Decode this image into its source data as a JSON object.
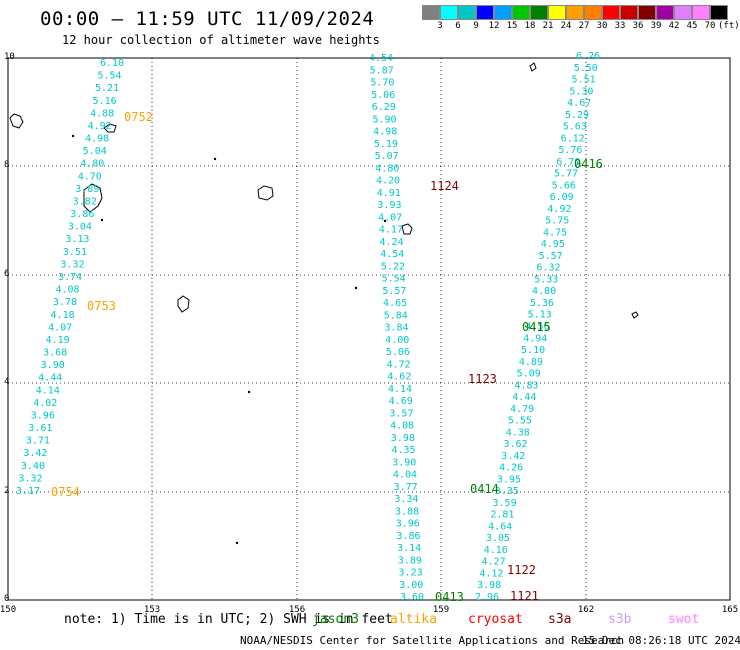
{
  "header": {
    "title": "00:00 – 11:59 UTC 11/09/2024",
    "subtitle": "12 hour collection of altimeter wave heights"
  },
  "legend": {
    "unit_label": "(ft)",
    "colors": [
      "#808080",
      "#00ffff",
      "#00c8c8",
      "#0000ff",
      "#00a0ff",
      "#00c800",
      "#008000",
      "#ffff00",
      "#ffa000",
      "#ff8000",
      "#ff0000",
      "#c80000",
      "#800000",
      "#a000a0",
      "#e080ff",
      "#ff80ff",
      "#000000"
    ],
    "labels": [
      "3",
      "6",
      "9",
      "12",
      "15",
      "18",
      "21",
      "24",
      "27",
      "30",
      "33",
      "36",
      "39",
      "42",
      "45",
      "70"
    ]
  },
  "map": {
    "lon_labels": [
      "150",
      "153",
      "156",
      "159",
      "162",
      "165"
    ],
    "lat_labels": [
      "0",
      "2",
      "4",
      "6",
      "8",
      "10"
    ],
    "grid": true,
    "line_color": "#00c8c8",
    "tracks": [
      {
        "name": "track-0752-0754",
        "values": [
          "6.10",
          "5.54",
          "5.21",
          "5.16",
          "4.88",
          "4.92",
          "4.98",
          "5.04",
          "4.80",
          "4.70",
          "3.89",
          "3.82",
          "3.86",
          "3.04",
          "3.13",
          "3.51",
          "3.32",
          "3.74",
          "4.08",
          "3.78",
          "4.18",
          "4.07",
          "4.19",
          "3.68",
          "3.90",
          "4.44",
          "4.14",
          "4.02",
          "3.96",
          "3.61",
          "3.71",
          "3.42",
          "3.40",
          "3.32",
          "3.17"
        ]
      },
      {
        "name": "track-1124-1121",
        "values": [
          "4.54",
          "5.87",
          "5.70",
          "5.06",
          "6.29",
          "5.90",
          "4.98",
          "5.19",
          "5.07",
          "4.80",
          "4.20",
          "4.91",
          "3.93",
          "4.07",
          "4.17",
          "4.24",
          "4.54",
          "5.22",
          "5.54",
          "5.57",
          "4.65",
          "5.84",
          "3.84",
          "4.00",
          "5.06",
          "4.72",
          "4.62",
          "4.14",
          "4.69",
          "3.57",
          "4.08",
          "3.98",
          "4.35",
          "3.90",
          "4.04",
          "3.77",
          "3.34",
          "3.88",
          "3.96",
          "3.86",
          "3.14",
          "3.89",
          "3.23",
          "3.00",
          "3.60"
        ]
      },
      {
        "name": "track-0416-0413",
        "values": [
          "6.26",
          "5.50",
          "5.51",
          "5.30",
          "4.67",
          "5.29",
          "5.63",
          "6.12",
          "5.76",
          "6.70",
          "5.77",
          "5.66",
          "6.09",
          "4.92",
          "5.75",
          "4.75",
          "4.95",
          "5.57",
          "6.32",
          "5.33",
          "4.80",
          "5.36",
          "5.13",
          "4.56",
          "4.94",
          "5.10",
          "4.89",
          "5.09",
          "4.83",
          "4.44",
          "4.79",
          "5.55",
          "4.38",
          "3.62",
          "3.42",
          "4.26",
          "3.95",
          "3.35",
          "3.59",
          "2.81",
          "4.64",
          "3.05",
          "4.16",
          "4.27",
          "4.12",
          "3.98",
          "2.96"
        ]
      }
    ],
    "pass_labels": [
      {
        "text": "0752",
        "color": "#ffa000"
      },
      {
        "text": "0753",
        "color": "#ffa000"
      },
      {
        "text": "0754",
        "color": "#ffa000"
      },
      {
        "text": "1124",
        "color": "#800000"
      },
      {
        "text": "1123",
        "color": "#800000"
      },
      {
        "text": "1122",
        "color": "#800000"
      },
      {
        "text": "1121",
        "color": "#800000"
      },
      {
        "text": "0416",
        "color": "#008000"
      },
      {
        "text": "0415",
        "color": "#008000"
      },
      {
        "text": "0414",
        "color": "#008000"
      },
      {
        "text": "0413",
        "color": "#008000"
      }
    ]
  },
  "footer": {
    "note": "note: 1) Time is in UTC; 2) SWH is in feet",
    "satellites": [
      {
        "name": "jason3",
        "color": "#008000"
      },
      {
        "name": "altika",
        "color": "#ffa000"
      },
      {
        "name": "cryosat",
        "color": "#ff0000"
      },
      {
        "name": "s3a",
        "color": "#800000"
      },
      {
        "name": "s3b",
        "color": "#c8a0ff"
      },
      {
        "name": "swot",
        "color": "#ff80ff"
      }
    ],
    "credit": "NOAA/NESDIS Center for Satellite Applications and Research",
    "generated": "15 Dec 08:26:18 UTC 2024"
  }
}
